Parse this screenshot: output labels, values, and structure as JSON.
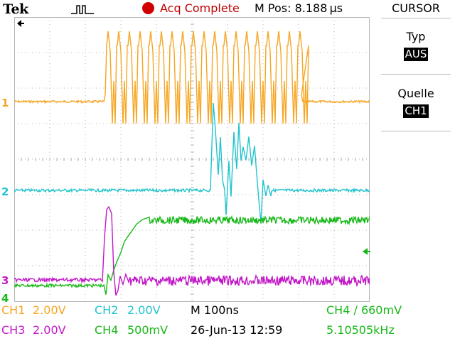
{
  "header": {
    "brand": "Tek",
    "acq_status": "Acq Complete",
    "m_pos": "M Pos: 8.188 µs",
    "trigger_icon": "pulse-trigger-icon"
  },
  "cursor_menu": {
    "title": "CURSOR",
    "type_label": "Typ",
    "type_value": "AUS",
    "source_label": "Quelle",
    "source_value": "CH1"
  },
  "channels": {
    "ch1": {
      "marker": "1",
      "color": "#f5a623"
    },
    "ch2": {
      "marker": "2",
      "color": "#22c3cc"
    },
    "ch3": {
      "marker": "3",
      "color": "#c218c8"
    },
    "ch4": {
      "marker": "4",
      "color": "#18b818"
    }
  },
  "status_bar": {
    "ch1_label": "CH1",
    "ch1_scale": "2.00V",
    "ch2_label": "CH2",
    "ch2_scale": "2.00V",
    "timebase": "M 100ns",
    "trigger": "CH4 ∕ 660mV",
    "ch3_label": "CH3",
    "ch3_scale": "2.00V",
    "ch4_label": "CH4",
    "ch4_scale": "500mV",
    "date": "26-Jun-13 12:59",
    "freq": "5.10505kHz"
  },
  "colors": {
    "grid": "#b4b4b4",
    "ch1": "#f5a623",
    "ch2": "#22c3cc",
    "ch3": "#c218c8",
    "ch4": "#18b818",
    "acq": "#d00000",
    "trigger_marker": "#18b818"
  }
}
